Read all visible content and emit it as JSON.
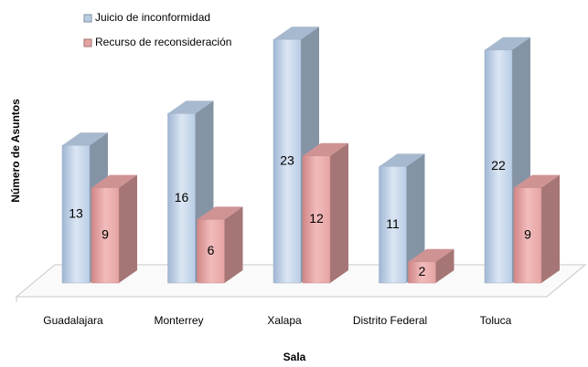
{
  "chart_data": {
    "type": "bar3d",
    "x_label": "Sala",
    "y_label": "Número de Asuntos",
    "categories": [
      "Guadalajara",
      "Monterrey",
      "Xalapa",
      "Distrito Federal",
      "Toluca"
    ],
    "series": [
      {
        "name": "Juicio de inconformidad",
        "color": "#b9cde5",
        "values": [
          13,
          16,
          23,
          11,
          22
        ]
      },
      {
        "name": "Recurso de reconsideración",
        "color": "#e6a3a3",
        "values": [
          9,
          6,
          12,
          2,
          9
        ]
      }
    ],
    "ylim": [
      0,
      25
    ],
    "legend": "top-left"
  }
}
